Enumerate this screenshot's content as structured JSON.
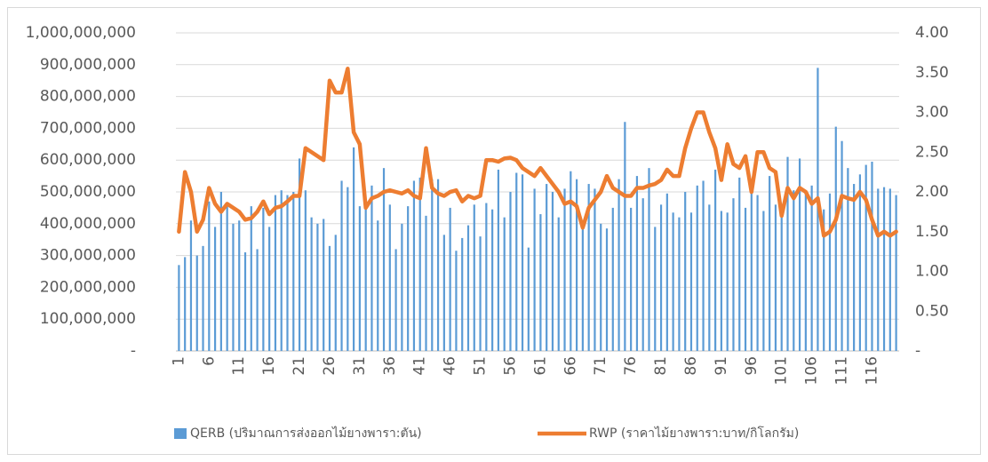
{
  "chart_data": {
    "type": "bar",
    "categories": [
      "1",
      null,
      null,
      null,
      null,
      "6",
      null,
      null,
      null,
      null,
      "11",
      null,
      null,
      null,
      null,
      "16",
      null,
      null,
      null,
      null,
      "21",
      null,
      null,
      null,
      null,
      "26",
      null,
      null,
      null,
      null,
      "31",
      null,
      null,
      null,
      null,
      "36",
      null,
      null,
      null,
      null,
      "41",
      null,
      null,
      null,
      null,
      "46",
      null,
      null,
      null,
      null,
      "51",
      null,
      null,
      null,
      null,
      "56",
      null,
      null,
      null,
      null,
      "61",
      null,
      null,
      null,
      null,
      "66",
      null,
      null,
      null,
      null,
      "71",
      null,
      null,
      null,
      null,
      "76",
      null,
      null,
      null,
      null,
      "81",
      null,
      null,
      null,
      null,
      "86",
      null,
      null,
      null,
      null,
      "91",
      null,
      null,
      null,
      null,
      "96",
      null,
      null,
      null,
      null,
      "101",
      null,
      null,
      null,
      null,
      "106",
      null,
      null,
      null,
      null,
      "111",
      null,
      null,
      null,
      null,
      "116",
      null,
      null,
      null,
      null
    ],
    "series": [
      {
        "name": "QERB (ปริมาณการส่งออกไม้ยางพารา:ตัน)",
        "type": "bar",
        "color": "#5b9bd5",
        "values": [
          270000000,
          295000000,
          410000000,
          300000000,
          330000000,
          470000000,
          390000000,
          500000000,
          460000000,
          400000000,
          410000000,
          310000000,
          455000000,
          320000000,
          450000000,
          390000000,
          490000000,
          505000000,
          490000000,
          500000000,
          605000000,
          505000000,
          420000000,
          400000000,
          415000000,
          330000000,
          365000000,
          535000000,
          515000000,
          640000000,
          455000000,
          450000000,
          520000000,
          410000000,
          575000000,
          460000000,
          320000000,
          400000000,
          455000000,
          535000000,
          545000000,
          425000000,
          540000000,
          540000000,
          365000000,
          450000000,
          315000000,
          355000000,
          395000000,
          460000000,
          360000000,
          465000000,
          445000000,
          570000000,
          420000000,
          500000000,
          560000000,
          555000000,
          325000000,
          510000000,
          430000000,
          525000000,
          500000000,
          420000000,
          510000000,
          565000000,
          540000000,
          400000000,
          525000000,
          510000000,
          400000000,
          385000000,
          450000000,
          540000000,
          720000000,
          450000000,
          550000000,
          480000000,
          575000000,
          390000000,
          460000000,
          495000000,
          435000000,
          420000000,
          500000000,
          435000000,
          520000000,
          535000000,
          460000000,
          570000000,
          440000000,
          435000000,
          480000000,
          545000000,
          450000000,
          505000000,
          490000000,
          440000000,
          550000000,
          460000000,
          440000000,
          610000000,
          505000000,
          605000000,
          500000000,
          520000000,
          890000000,
          445000000,
          495000000,
          705000000,
          660000000,
          575000000,
          525000000,
          555000000,
          585000000,
          595000000,
          510000000,
          515000000,
          510000000,
          490000000
        ]
      },
      {
        "name": "RWP (ราคาไม้ยางพารา:บาท/กิโลกรัม)",
        "type": "line",
        "axis": "y2",
        "color": "#ed7d31",
        "values": [
          1.5,
          2.25,
          2.0,
          1.5,
          1.65,
          2.05,
          1.85,
          1.75,
          1.85,
          1.8,
          1.75,
          1.65,
          1.67,
          1.75,
          1.88,
          1.72,
          1.8,
          1.82,
          1.88,
          1.95,
          1.95,
          2.55,
          2.5,
          2.45,
          2.4,
          3.4,
          3.25,
          3.25,
          3.55,
          2.75,
          2.6,
          1.8,
          1.92,
          1.95,
          2.0,
          2.02,
          2.0,
          1.98,
          2.02,
          1.95,
          1.92,
          2.55,
          2.05,
          1.98,
          1.95,
          2.0,
          2.02,
          1.88,
          1.95,
          1.92,
          1.95,
          2.4,
          2.4,
          2.38,
          2.42,
          2.43,
          2.4,
          2.3,
          2.25,
          2.2,
          2.3,
          2.2,
          2.1,
          2.0,
          1.85,
          1.88,
          1.82,
          1.55,
          1.8,
          1.9,
          2.0,
          2.2,
          2.05,
          2.0,
          1.95,
          1.95,
          2.05,
          2.05,
          2.08,
          2.1,
          2.15,
          2.28,
          2.2,
          2.2,
          2.55,
          2.8,
          3.0,
          3.0,
          2.75,
          2.55,
          2.15,
          2.6,
          2.35,
          2.3,
          2.45,
          2.0,
          2.5,
          2.5,
          2.3,
          2.25,
          1.7,
          2.05,
          1.92,
          2.05,
          2.0,
          1.85,
          1.92,
          1.45,
          1.5,
          1.65,
          1.95,
          1.92,
          1.9,
          2.0,
          1.9,
          1.65,
          1.45,
          1.5,
          1.45,
          1.5
        ]
      }
    ],
    "ylim": [
      0,
      1000000000
    ],
    "yticks": [
      {
        "value": 0,
        "label": "-"
      },
      {
        "value": 100000000,
        "label": "100,000,000"
      },
      {
        "value": 200000000,
        "label": "200,000,000"
      },
      {
        "value": 300000000,
        "label": "300,000,000"
      },
      {
        "value": 400000000,
        "label": "400,000,000"
      },
      {
        "value": 500000000,
        "label": "500,000,000"
      },
      {
        "value": 600000000,
        "label": "600,000,000"
      },
      {
        "value": 700000000,
        "label": "700,000,000"
      },
      {
        "value": 800000000,
        "label": "800,000,000"
      },
      {
        "value": 900000000,
        "label": "900,000,000"
      },
      {
        "value": 1000000000,
        "label": "1,000,000,000"
      }
    ],
    "y2lim": [
      0,
      4
    ],
    "y2ticks": [
      {
        "value": 0,
        "label": "-"
      },
      {
        "value": 0.5,
        "label": "0.50"
      },
      {
        "value": 1,
        "label": "1.00"
      },
      {
        "value": 1.5,
        "label": "1.50"
      },
      {
        "value": 2,
        "label": "2.00"
      },
      {
        "value": 2.5,
        "label": "2.50"
      },
      {
        "value": 3,
        "label": "3.00"
      },
      {
        "value": 3.5,
        "label": "3.50"
      },
      {
        "value": 4,
        "label": "4.00"
      }
    ],
    "grid": true,
    "legend": "bottom"
  }
}
